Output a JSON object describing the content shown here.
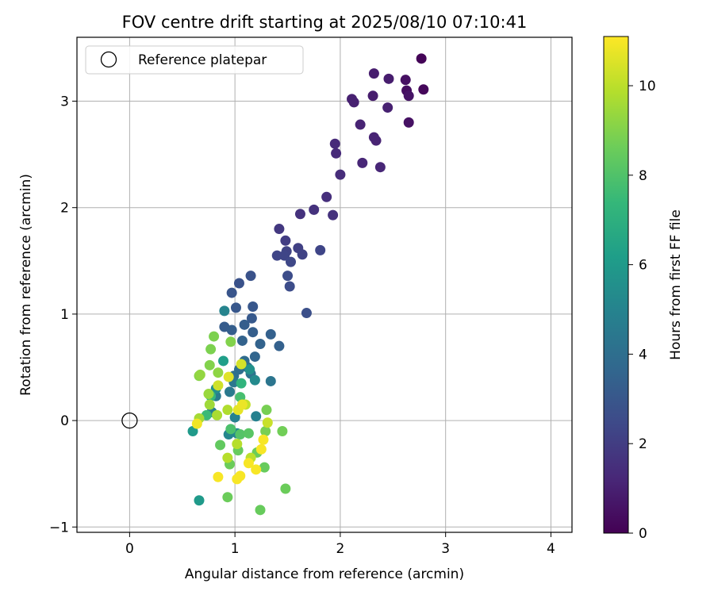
{
  "chart_data": {
    "type": "scatter",
    "title": "FOV centre drift starting at 2025/08/10 07:10:41",
    "xlabel": "Angular distance from reference (arcmin)",
    "ylabel": "Rotation from reference (arcmin)",
    "xlim": [
      -0.5,
      4.2
    ],
    "ylim": [
      -1.05,
      3.6
    ],
    "xticks": [
      0,
      1,
      2,
      3,
      4
    ],
    "yticks": [
      -1,
      0,
      1,
      2,
      3
    ],
    "xtick_labels": [
      "0",
      "1",
      "2",
      "3",
      "4"
    ],
    "ytick_labels": [
      "−1",
      "0",
      "1",
      "2",
      "3"
    ],
    "grid": true,
    "legend": {
      "position": "top-left",
      "label": "Reference platepar"
    },
    "reference_point": {
      "x": 0,
      "y": 0
    },
    "colorbar": {
      "label": "Hours from first FF file",
      "colormap": "viridis",
      "range": [
        0,
        11.1
      ],
      "ticks": [
        0,
        2,
        4,
        6,
        8,
        10
      ],
      "tick_labels": [
        "0",
        "2",
        "4",
        "6",
        "8",
        "10"
      ]
    },
    "points": [
      {
        "x": 2.77,
        "y": 3.4,
        "t": 0.1
      },
      {
        "x": 2.79,
        "y": 3.11,
        "t": 0.2
      },
      {
        "x": 2.62,
        "y": 3.2,
        "t": 0.5
      },
      {
        "x": 2.63,
        "y": 3.1,
        "t": 0.4
      },
      {
        "x": 2.65,
        "y": 2.8,
        "t": 0.5
      },
      {
        "x": 2.65,
        "y": 3.05,
        "t": 0.6
      },
      {
        "x": 2.32,
        "y": 3.26,
        "t": 0.9
      },
      {
        "x": 2.46,
        "y": 3.21,
        "t": 0.9
      },
      {
        "x": 2.31,
        "y": 3.05,
        "t": 0.9
      },
      {
        "x": 2.11,
        "y": 3.02,
        "t": 1.0
      },
      {
        "x": 2.13,
        "y": 2.99,
        "t": 1.0
      },
      {
        "x": 2.45,
        "y": 2.94,
        "t": 1.0
      },
      {
        "x": 2.19,
        "y": 2.78,
        "t": 1.1
      },
      {
        "x": 2.32,
        "y": 2.66,
        "t": 1.1
      },
      {
        "x": 2.34,
        "y": 2.63,
        "t": 1.1
      },
      {
        "x": 2.21,
        "y": 2.42,
        "t": 1.2
      },
      {
        "x": 2.38,
        "y": 2.38,
        "t": 1.2
      },
      {
        "x": 1.95,
        "y": 2.6,
        "t": 1.3
      },
      {
        "x": 1.96,
        "y": 2.51,
        "t": 1.3
      },
      {
        "x": 2.0,
        "y": 2.31,
        "t": 1.4
      },
      {
        "x": 1.87,
        "y": 2.1,
        "t": 1.5
      },
      {
        "x": 1.75,
        "y": 1.98,
        "t": 1.6
      },
      {
        "x": 1.62,
        "y": 1.94,
        "t": 1.6
      },
      {
        "x": 1.93,
        "y": 1.93,
        "t": 1.6
      },
      {
        "x": 1.42,
        "y": 1.8,
        "t": 1.8
      },
      {
        "x": 1.48,
        "y": 1.69,
        "t": 2.0
      },
      {
        "x": 1.6,
        "y": 1.62,
        "t": 2.1
      },
      {
        "x": 1.49,
        "y": 1.59,
        "t": 2.2
      },
      {
        "x": 1.64,
        "y": 1.56,
        "t": 2.2
      },
      {
        "x": 1.81,
        "y": 1.6,
        "t": 2.3
      },
      {
        "x": 1.47,
        "y": 1.55,
        "t": 2.3
      },
      {
        "x": 1.4,
        "y": 1.55,
        "t": 2.3
      },
      {
        "x": 1.53,
        "y": 1.49,
        "t": 2.4
      },
      {
        "x": 1.5,
        "y": 1.36,
        "t": 2.6
      },
      {
        "x": 1.52,
        "y": 1.26,
        "t": 2.6
      },
      {
        "x": 1.68,
        "y": 1.01,
        "t": 2.7
      },
      {
        "x": 1.15,
        "y": 1.36,
        "t": 2.8
      },
      {
        "x": 1.04,
        "y": 1.29,
        "t": 2.8
      },
      {
        "x": 0.97,
        "y": 1.2,
        "t": 2.9
      },
      {
        "x": 1.01,
        "y": 1.06,
        "t": 3.0
      },
      {
        "x": 1.17,
        "y": 1.07,
        "t": 3.0
      },
      {
        "x": 1.16,
        "y": 0.96,
        "t": 3.1
      },
      {
        "x": 0.9,
        "y": 0.88,
        "t": 3.2
      },
      {
        "x": 0.97,
        "y": 0.85,
        "t": 3.3
      },
      {
        "x": 1.09,
        "y": 0.9,
        "t": 3.3
      },
      {
        "x": 1.34,
        "y": 0.81,
        "t": 3.4
      },
      {
        "x": 1.17,
        "y": 0.83,
        "t": 3.3
      },
      {
        "x": 1.42,
        "y": 0.7,
        "t": 3.4
      },
      {
        "x": 1.24,
        "y": 0.72,
        "t": 3.5
      },
      {
        "x": 1.07,
        "y": 0.75,
        "t": 3.5
      },
      {
        "x": 1.19,
        "y": 0.6,
        "t": 3.6
      },
      {
        "x": 1.12,
        "y": 0.5,
        "t": 3.8
      },
      {
        "x": 1.09,
        "y": 0.56,
        "t": 3.9
      },
      {
        "x": 1.04,
        "y": 0.48,
        "t": 4.0
      },
      {
        "x": 0.99,
        "y": 0.42,
        "t": 4.1
      },
      {
        "x": 1.15,
        "y": 0.44,
        "t": 4.2
      },
      {
        "x": 1.34,
        "y": 0.37,
        "t": 4.3
      },
      {
        "x": 0.99,
        "y": 0.36,
        "t": 4.4
      },
      {
        "x": 0.95,
        "y": 0.27,
        "t": 4.5
      },
      {
        "x": 0.82,
        "y": 0.23,
        "t": 4.6
      },
      {
        "x": 0.78,
        "y": 0.08,
        "t": 4.8
      },
      {
        "x": 1.0,
        "y": 0.03,
        "t": 4.9
      },
      {
        "x": 1.2,
        "y": 0.04,
        "t": 4.9
      },
      {
        "x": 0.94,
        "y": -0.13,
        "t": 5.1
      },
      {
        "x": 1.02,
        "y": -0.12,
        "t": 5.2
      },
      {
        "x": 0.9,
        "y": 1.03,
        "t": 5.0
      },
      {
        "x": 1.19,
        "y": 0.38,
        "t": 5.3
      },
      {
        "x": 1.14,
        "y": 0.48,
        "t": 5.6
      },
      {
        "x": 0.82,
        "y": 0.3,
        "t": 5.5
      },
      {
        "x": 0.6,
        "y": -0.1,
        "t": 6.0
      },
      {
        "x": 0.66,
        "y": -0.75,
        "t": 6.0
      },
      {
        "x": 0.89,
        "y": 0.56,
        "t": 6.2
      },
      {
        "x": 1.06,
        "y": 0.35,
        "t": 7.2
      },
      {
        "x": 0.77,
        "y": 0.23,
        "t": 7.4
      },
      {
        "x": 0.73,
        "y": 0.05,
        "t": 7.5
      },
      {
        "x": 1.05,
        "y": 0.22,
        "t": 7.8
      },
      {
        "x": 0.96,
        "y": -0.08,
        "t": 7.9
      },
      {
        "x": 1.05,
        "y": -0.13,
        "t": 8.1
      },
      {
        "x": 1.13,
        "y": -0.12,
        "t": 8.2
      },
      {
        "x": 0.86,
        "y": -0.23,
        "t": 8.4
      },
      {
        "x": 1.03,
        "y": -0.28,
        "t": 8.5
      },
      {
        "x": 1.21,
        "y": -0.3,
        "t": 8.6
      },
      {
        "x": 1.28,
        "y": -0.44,
        "t": 8.5
      },
      {
        "x": 0.95,
        "y": -0.41,
        "t": 8.6
      },
      {
        "x": 0.93,
        "y": -0.72,
        "t": 8.6
      },
      {
        "x": 1.24,
        "y": -0.84,
        "t": 8.5
      },
      {
        "x": 1.48,
        "y": -0.64,
        "t": 8.6
      },
      {
        "x": 1.45,
        "y": -0.1,
        "t": 8.7
      },
      {
        "x": 1.29,
        "y": -0.1,
        "t": 8.8
      },
      {
        "x": 1.3,
        "y": 0.1,
        "t": 8.8
      },
      {
        "x": 0.77,
        "y": 0.67,
        "t": 8.9
      },
      {
        "x": 0.8,
        "y": 0.79,
        "t": 8.9
      },
      {
        "x": 0.96,
        "y": 0.74,
        "t": 9.0
      },
      {
        "x": 0.76,
        "y": 0.52,
        "t": 9.0
      },
      {
        "x": 0.66,
        "y": 0.42,
        "t": 9.1
      },
      {
        "x": 0.84,
        "y": 0.45,
        "t": 9.2
      },
      {
        "x": 0.67,
        "y": 0.43,
        "t": 9.3
      },
      {
        "x": 0.75,
        "y": 0.25,
        "t": 9.4
      },
      {
        "x": 0.76,
        "y": 0.15,
        "t": 9.5
      },
      {
        "x": 0.66,
        "y": 0.02,
        "t": 9.6
      },
      {
        "x": 0.83,
        "y": 0.05,
        "t": 9.7
      },
      {
        "x": 0.93,
        "y": 0.1,
        "t": 9.8
      },
      {
        "x": 0.93,
        "y": -0.35,
        "t": 9.9
      },
      {
        "x": 1.02,
        "y": -0.22,
        "t": 9.9
      },
      {
        "x": 1.15,
        "y": -0.35,
        "t": 10.0
      },
      {
        "x": 1.1,
        "y": 0.15,
        "t": 10.1
      },
      {
        "x": 1.31,
        "y": -0.02,
        "t": 10.2
      },
      {
        "x": 0.84,
        "y": 0.33,
        "t": 10.3
      },
      {
        "x": 1.06,
        "y": 0.53,
        "t": 10.4
      },
      {
        "x": 0.94,
        "y": 0.41,
        "t": 10.6
      },
      {
        "x": 1.03,
        "y": 0.1,
        "t": 10.7
      },
      {
        "x": 1.07,
        "y": 0.15,
        "t": 10.8
      },
      {
        "x": 0.64,
        "y": -0.03,
        "t": 10.9
      },
      {
        "x": 0.84,
        "y": -0.53,
        "t": 11.0
      },
      {
        "x": 1.02,
        "y": -0.55,
        "t": 11.0
      },
      {
        "x": 1.05,
        "y": -0.52,
        "t": 11.0
      },
      {
        "x": 1.13,
        "y": -0.4,
        "t": 11.0
      },
      {
        "x": 1.2,
        "y": -0.46,
        "t": 11.0
      },
      {
        "x": 1.25,
        "y": -0.27,
        "t": 11.0
      },
      {
        "x": 1.27,
        "y": -0.18,
        "t": 11.0
      }
    ]
  }
}
